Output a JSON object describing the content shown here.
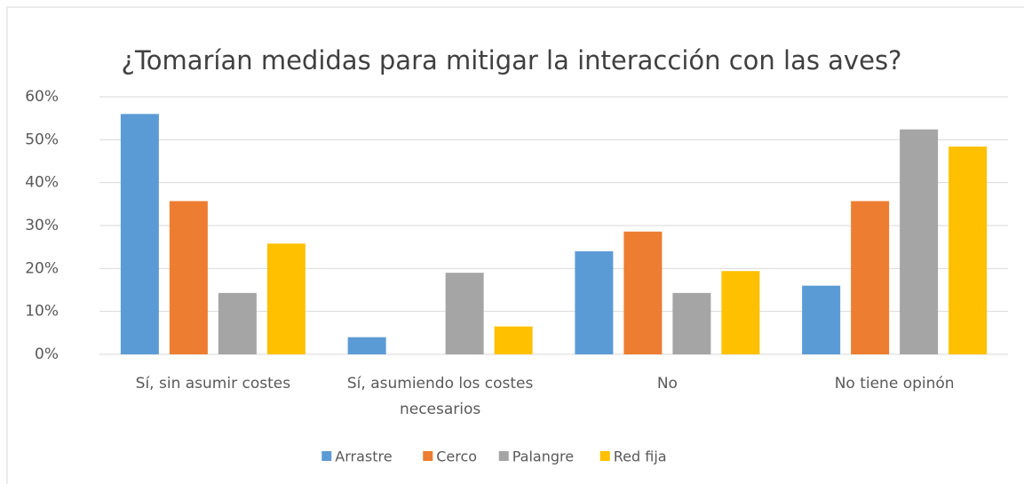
{
  "chart_data": {
    "type": "bar",
    "title": "¿Tomarían medidas para mitigar la interacción con las aves?",
    "categories": [
      "Sí, sin asumir costes",
      "Sí, asumiendo los costes necesarios",
      "No",
      "No tiene opinón"
    ],
    "series": [
      {
        "name": "Arrastre",
        "color": "#5b9bd5",
        "values": [
          56,
          4,
          24,
          16
        ]
      },
      {
        "name": "Cerco",
        "color": "#ed7d31",
        "values": [
          35.7,
          0,
          28.6,
          35.7
        ]
      },
      {
        "name": "Palangre",
        "color": "#a5a5a5",
        "values": [
          14.3,
          19,
          14.3,
          52.4
        ]
      },
      {
        "name": "Red fija",
        "color": "#ffc000",
        "values": [
          25.8,
          6.5,
          19.4,
          48.4
        ]
      }
    ],
    "ylim": [
      0,
      60
    ],
    "yticks": [
      {
        "value": 0,
        "label": "0%"
      },
      {
        "value": 10,
        "label": "10%"
      },
      {
        "value": 20,
        "label": "20%"
      },
      {
        "value": 30,
        "label": "30%"
      },
      {
        "value": 40,
        "label": "40%"
      },
      {
        "value": 50,
        "label": "50%"
      },
      {
        "value": 60,
        "label": "60%"
      }
    ],
    "grid": true,
    "legend": "bottom"
  }
}
